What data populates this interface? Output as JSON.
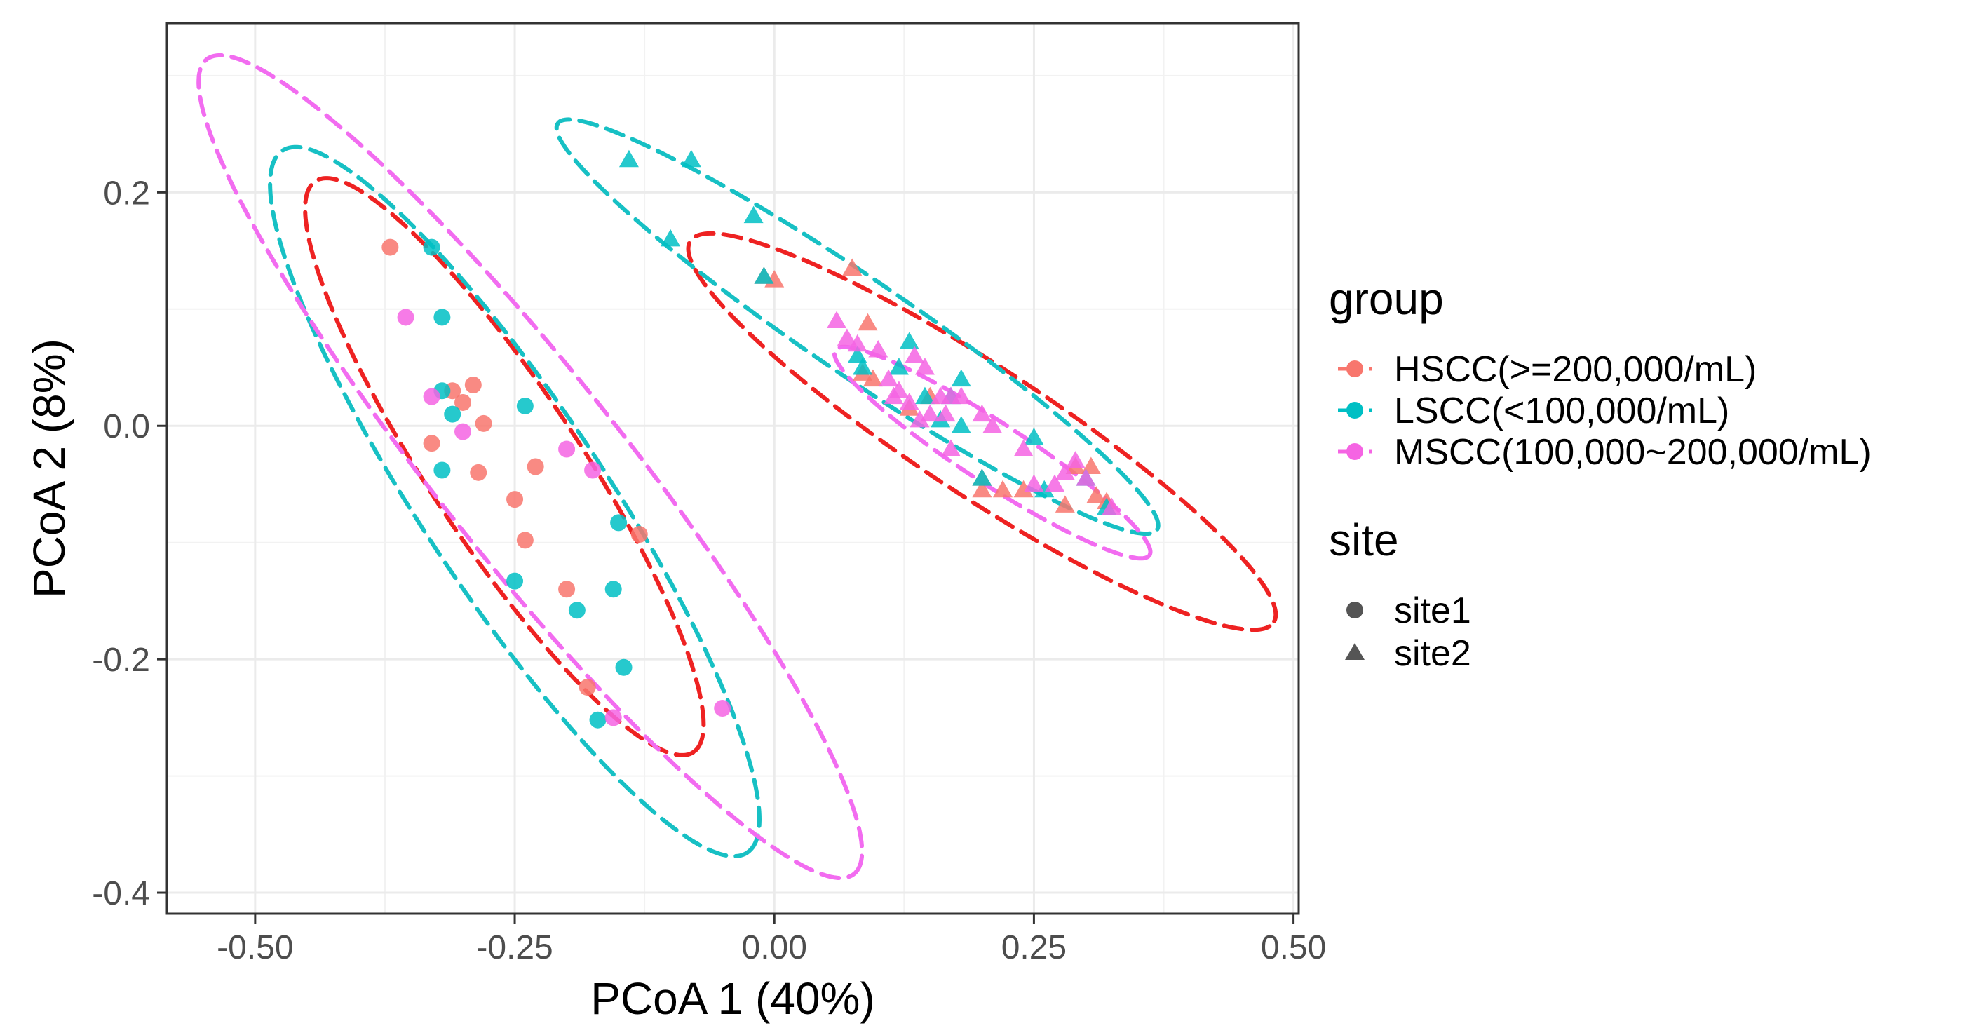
{
  "chart_data": {
    "type": "scatter",
    "title": "",
    "xlabel": "PCoA 1 (40%)",
    "ylabel": "PCoA 2 (8%)",
    "xlim": [
      -0.585,
      0.505
    ],
    "ylim": [
      -0.418,
      0.345
    ],
    "x_ticks": [
      -0.5,
      -0.25,
      0.0,
      0.25,
      0.5
    ],
    "x_tick_labels": [
      "-0.50",
      "-0.25",
      "0.00",
      "0.25",
      "0.50"
    ],
    "y_ticks": [
      -0.4,
      -0.2,
      0.0,
      0.2
    ],
    "y_tick_labels": [
      "-0.4",
      "-0.2",
      "0.0",
      "0.2"
    ],
    "x_minor": [
      -0.375,
      -0.125,
      0.125,
      0.375
    ],
    "y_minor": [
      -0.3,
      -0.1,
      0.1,
      0.3
    ],
    "grid": true,
    "legend": {
      "position": "right",
      "group_title": "group",
      "site_title": "site",
      "groups": [
        {
          "key": "HSCC",
          "label": "HSCC(>=200,000/mL)",
          "color": "#F8766D"
        },
        {
          "key": "LSCC",
          "label": "LSCC(<100,000/mL)",
          "color": "#00BFC4"
        },
        {
          "key": "MSCC",
          "label": "MSCC(100,000~200,000/mL)",
          "color": "#F564E3"
        }
      ],
      "sites": [
        {
          "key": "site1",
          "label": "site1",
          "shape": "circle"
        },
        {
          "key": "site2",
          "label": "site2",
          "shape": "triangle"
        }
      ]
    },
    "ellipses": [
      {
        "group": "HSCC",
        "site": "site1",
        "color": "#EE2222",
        "cx": -0.26,
        "cy": -0.035,
        "a": 0.305,
        "b": 0.07,
        "angle": -53
      },
      {
        "group": "LSCC",
        "site": "site1",
        "color": "#17C0C4",
        "cx": -0.25,
        "cy": -0.065,
        "a": 0.375,
        "b": 0.085,
        "angle": -53
      },
      {
        "group": "MSCC",
        "site": "site1",
        "color": "#F26CF0",
        "cx": -0.235,
        "cy": -0.035,
        "a": 0.468,
        "b": 0.085,
        "angle": -48
      },
      {
        "group": "HSCC",
        "site": "site2",
        "color": "#EE2222",
        "cx": 0.2,
        "cy": -0.005,
        "a": 0.325,
        "b": 0.057,
        "angle": -30
      },
      {
        "group": "LSCC",
        "site": "site2",
        "color": "#17C0C4",
        "cx": 0.08,
        "cy": 0.085,
        "a": 0.337,
        "b": 0.043,
        "angle": -31
      },
      {
        "group": "MSCC",
        "site": "site2",
        "color": "#F26CF0",
        "cx": 0.21,
        "cy": -0.023,
        "a": 0.175,
        "b": 0.027,
        "angle": -30
      }
    ],
    "series": [
      {
        "name": "HSCC site1",
        "group": "HSCC",
        "site": "site1",
        "points": [
          [
            -0.37,
            0.153
          ],
          [
            -0.33,
            -0.015
          ],
          [
            -0.31,
            0.03
          ],
          [
            -0.3,
            0.02
          ],
          [
            -0.29,
            0.035
          ],
          [
            -0.28,
            0.002
          ],
          [
            -0.285,
            -0.04
          ],
          [
            -0.25,
            -0.063
          ],
          [
            -0.24,
            -0.098
          ],
          [
            -0.23,
            -0.035
          ],
          [
            -0.2,
            -0.14
          ],
          [
            -0.18,
            -0.224
          ],
          [
            -0.13,
            -0.093
          ]
        ]
      },
      {
        "name": "LSCC site1",
        "group": "LSCC",
        "site": "site1",
        "points": [
          [
            -0.33,
            0.153
          ],
          [
            -0.32,
            0.093
          ],
          [
            -0.32,
            0.03
          ],
          [
            -0.31,
            0.01
          ],
          [
            -0.32,
            -0.038
          ],
          [
            -0.25,
            -0.133
          ],
          [
            -0.24,
            0.017
          ],
          [
            -0.19,
            -0.158
          ],
          [
            -0.17,
            -0.252
          ],
          [
            -0.15,
            -0.083
          ],
          [
            -0.155,
            -0.14
          ],
          [
            -0.145,
            -0.207
          ]
        ]
      },
      {
        "name": "MSCC site1",
        "group": "MSCC",
        "site": "site1",
        "points": [
          [
            -0.355,
            0.093
          ],
          [
            -0.33,
            0.025
          ],
          [
            -0.3,
            -0.005
          ],
          [
            -0.2,
            -0.02
          ],
          [
            -0.175,
            -0.038
          ],
          [
            -0.155,
            -0.25
          ],
          [
            -0.05,
            -0.242
          ]
        ]
      },
      {
        "name": "HSCC site2",
        "group": "HSCC",
        "site": "site2",
        "points": [
          [
            -0.01,
            0.128
          ],
          [
            0.0,
            0.125
          ],
          [
            0.075,
            0.135
          ],
          [
            0.09,
            0.088
          ],
          [
            0.085,
            0.045
          ],
          [
            0.095,
            0.04
          ],
          [
            0.13,
            0.015
          ],
          [
            0.15,
            0.025
          ],
          [
            0.2,
            -0.045
          ],
          [
            0.2,
            -0.055
          ],
          [
            0.22,
            -0.055
          ],
          [
            0.24,
            -0.055
          ],
          [
            0.28,
            -0.068
          ],
          [
            0.29,
            -0.035
          ],
          [
            0.305,
            -0.035
          ],
          [
            0.32,
            -0.065
          ],
          [
            0.31,
            -0.06
          ]
        ]
      },
      {
        "name": "LSCC site2",
        "group": "LSCC",
        "site": "site2",
        "points": [
          [
            -0.14,
            0.228
          ],
          [
            -0.08,
            0.228
          ],
          [
            -0.1,
            0.16
          ],
          [
            -0.02,
            0.18
          ],
          [
            -0.01,
            0.128
          ],
          [
            0.08,
            0.06
          ],
          [
            0.085,
            0.05
          ],
          [
            0.12,
            0.05
          ],
          [
            0.13,
            0.072
          ],
          [
            0.145,
            0.025
          ],
          [
            0.16,
            0.005
          ],
          [
            0.17,
            0.025
          ],
          [
            0.18,
            0.04
          ],
          [
            0.18,
            0.0
          ],
          [
            0.2,
            -0.045
          ],
          [
            0.25,
            -0.01
          ],
          [
            0.26,
            -0.055
          ],
          [
            0.3,
            -0.045
          ],
          [
            0.32,
            -0.07
          ]
        ]
      },
      {
        "name": "MSCC site2",
        "group": "MSCC",
        "site": "site2",
        "points": [
          [
            0.06,
            0.09
          ],
          [
            0.07,
            0.075
          ],
          [
            0.08,
            0.07
          ],
          [
            0.1,
            0.065
          ],
          [
            0.11,
            0.04
          ],
          [
            0.115,
            0.025
          ],
          [
            0.12,
            0.03
          ],
          [
            0.13,
            0.02
          ],
          [
            0.135,
            0.06
          ],
          [
            0.14,
            0.005
          ],
          [
            0.145,
            0.05
          ],
          [
            0.15,
            0.01
          ],
          [
            0.16,
            0.025
          ],
          [
            0.165,
            0.01
          ],
          [
            0.17,
            0.025
          ],
          [
            0.17,
            -0.02
          ],
          [
            0.18,
            0.025
          ],
          [
            0.2,
            0.01
          ],
          [
            0.21,
            0.0
          ],
          [
            0.24,
            -0.02
          ],
          [
            0.25,
            -0.05
          ],
          [
            0.27,
            -0.05
          ],
          [
            0.28,
            -0.04
          ],
          [
            0.29,
            -0.03
          ],
          [
            0.3,
            -0.045
          ],
          [
            0.325,
            -0.07
          ]
        ]
      }
    ]
  }
}
